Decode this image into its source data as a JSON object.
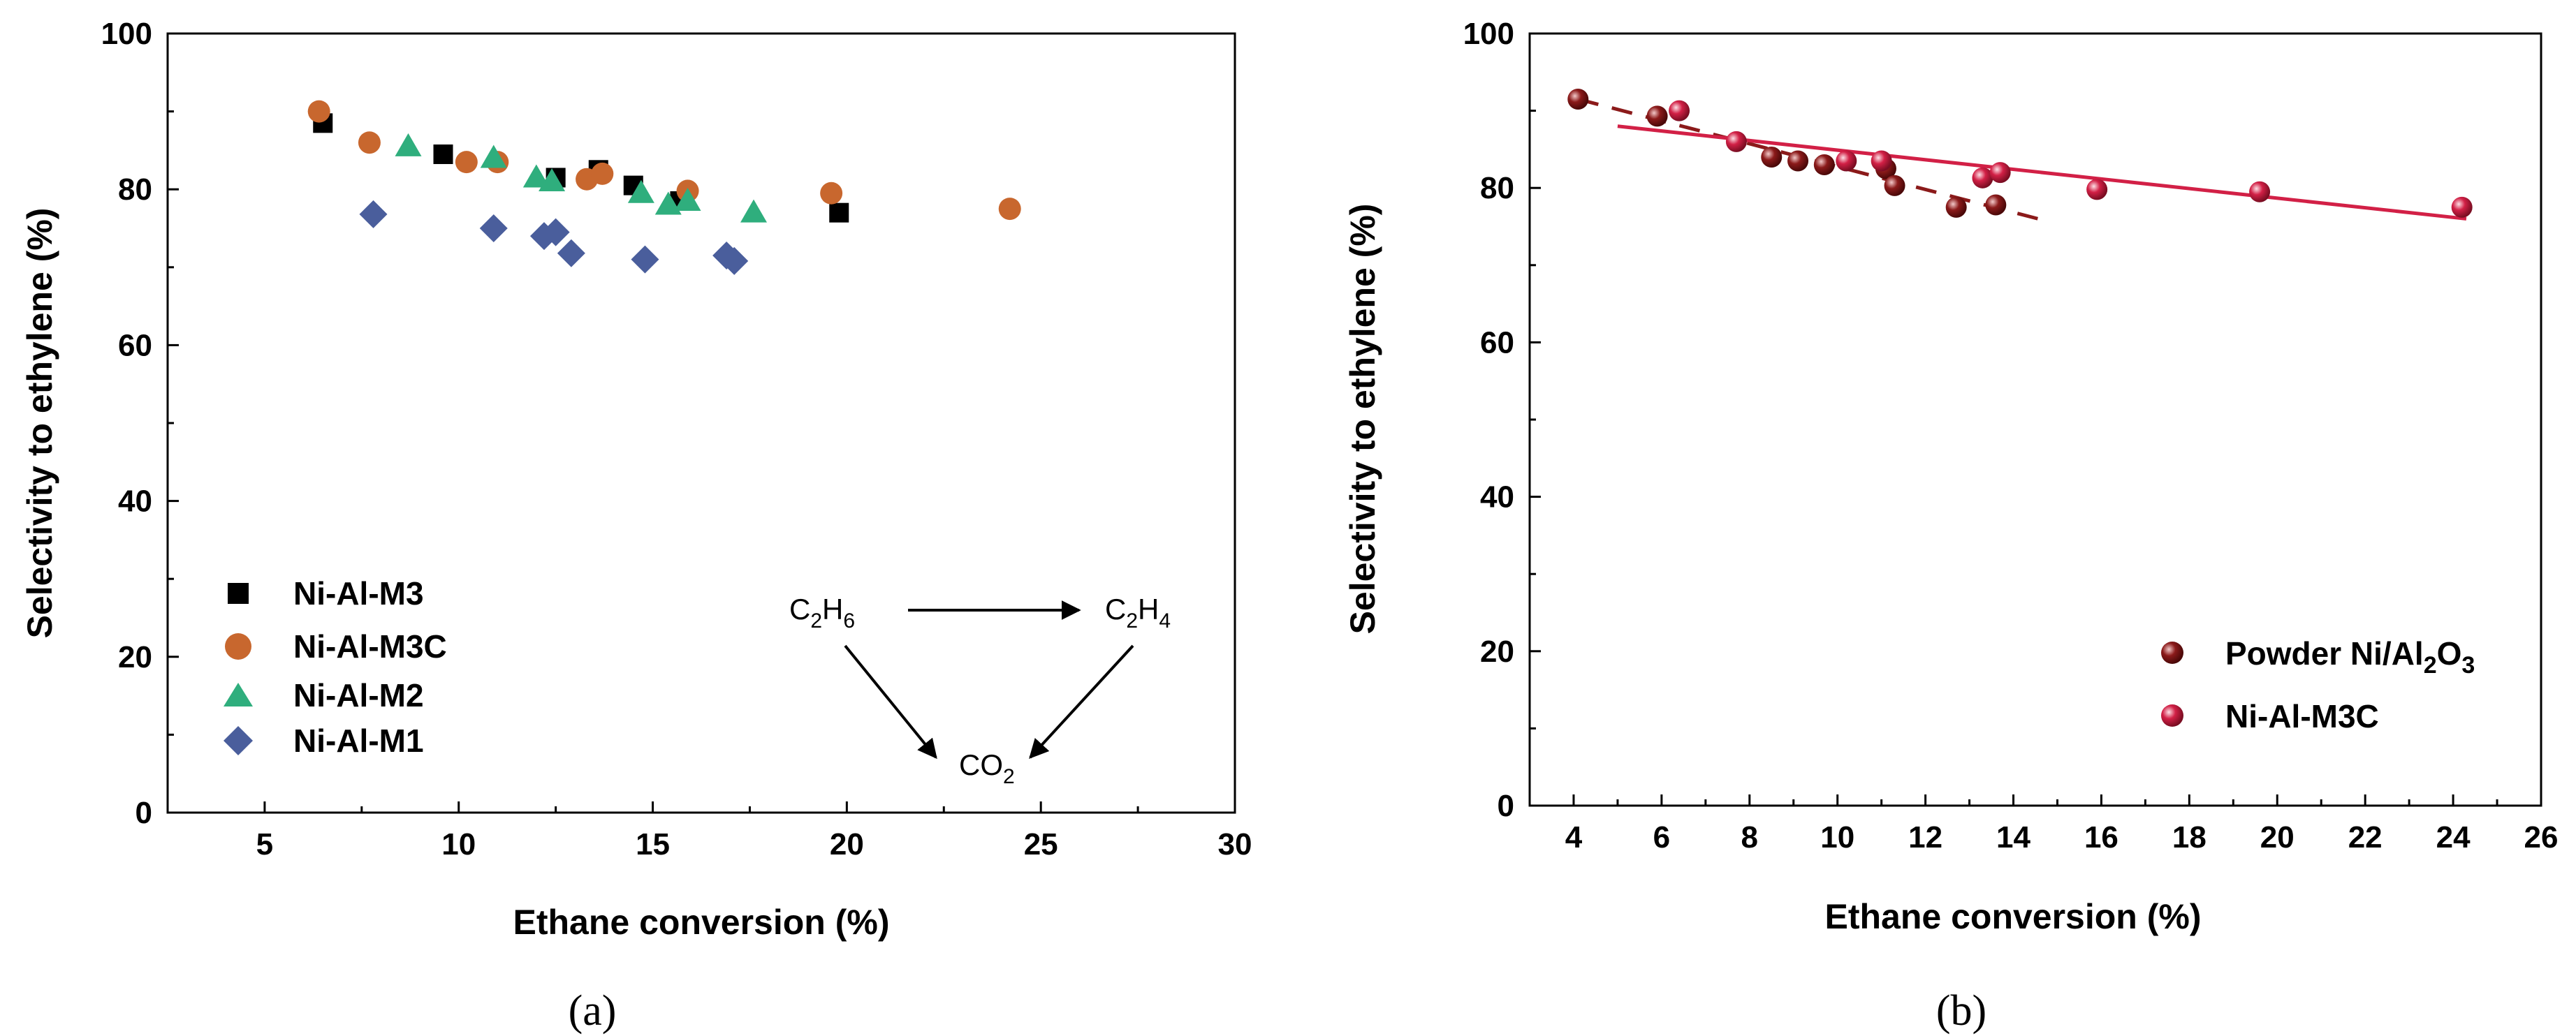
{
  "chart_data": [
    {
      "type": "scatter",
      "panel": "a",
      "caption": "(a)",
      "xlabel": "Ethane conversion (%)",
      "ylabel": "Selectivity to ethylene (%)",
      "xlim": [
        2.5,
        30
      ],
      "ylim": [
        0,
        100
      ],
      "xticks": [
        5,
        10,
        15,
        20,
        25,
        30
      ],
      "yticks": [
        0,
        20,
        40,
        60,
        80,
        100
      ],
      "grid": false,
      "legend_position": "bottom-left",
      "series": [
        {
          "name": "Ni-Al-M3",
          "marker": "square",
          "color": "#000000",
          "x": [
            6.5,
            9.6,
            12.5,
            13.6,
            14.5,
            15.7,
            19.8
          ],
          "y": [
            88.5,
            84.5,
            81.5,
            82.5,
            80.5,
            78.5,
            77.0
          ]
        },
        {
          "name": "Ni-Al-M3C",
          "marker": "circle",
          "color": "#c8672e",
          "x": [
            6.4,
            7.7,
            10.2,
            11.0,
            13.3,
            13.7,
            15.9,
            19.6,
            24.2
          ],
          "y": [
            90.0,
            86.0,
            83.5,
            83.5,
            81.3,
            82.0,
            79.8,
            79.5,
            77.5
          ]
        },
        {
          "name": "Ni-Al-M2",
          "marker": "triangle",
          "color": "#2fae7d",
          "x": [
            8.7,
            10.9,
            12.0,
            12.4,
            14.7,
            15.4,
            15.9,
            17.6
          ],
          "y": [
            85.5,
            84.0,
            81.5,
            81.0,
            79.5,
            78.0,
            78.5,
            77.0
          ]
        },
        {
          "name": "Ni-Al-M1",
          "marker": "diamond",
          "color": "#4a5e9c",
          "x": [
            7.8,
            10.9,
            12.2,
            12.5,
            12.9,
            14.8,
            16.9,
            17.1
          ],
          "y": [
            76.8,
            75.0,
            74.0,
            74.5,
            71.8,
            71.0,
            71.5,
            70.8
          ]
        }
      ],
      "scheme": {
        "reactant": {
          "base": "C",
          "n1": "2",
          "mid": "H",
          "n2": "6"
        },
        "product": {
          "base": "C",
          "n1": "2",
          "mid": "H",
          "n2": "4"
        },
        "byproduct": {
          "base": "CO",
          "n1": "2"
        }
      }
    },
    {
      "type": "scatter",
      "panel": "b",
      "caption": "(b)",
      "xlabel": "Ethane conversion (%)",
      "ylabel": "Selectivity to ethylene (%)",
      "xlim": [
        3,
        26
      ],
      "ylim": [
        0,
        100
      ],
      "xticks": [
        4,
        6,
        8,
        10,
        12,
        14,
        16,
        18,
        20,
        22,
        24,
        26
      ],
      "yticks": [
        0,
        20,
        40,
        60,
        80,
        100
      ],
      "grid": false,
      "legend_position": "bottom-right",
      "series": [
        {
          "name": "Powder Ni/Al2O3",
          "name_parts": {
            "pre": "Powder Ni/Al",
            "s1": "2",
            "mid": "O",
            "s2": "3"
          },
          "marker": "sphere",
          "color": "#8b1a1a",
          "x": [
            4.1,
            5.9,
            8.5,
            9.1,
            9.7,
            11.1,
            11.3,
            12.7,
            13.6
          ],
          "y": [
            91.5,
            89.3,
            84.0,
            83.5,
            83.0,
            82.5,
            80.3,
            77.5,
            77.8
          ],
          "fit": {
            "style": "dashed",
            "x": [
              4.1,
              14.7
            ],
            "y": [
              91.5,
              75.8
            ]
          }
        },
        {
          "name": "Ni-Al-M3C",
          "marker": "sphere",
          "color": "#d22046",
          "x": [
            6.4,
            7.7,
            10.2,
            11.0,
            13.3,
            13.7,
            15.9,
            19.6,
            24.2
          ],
          "y": [
            90.0,
            86.0,
            83.5,
            83.5,
            81.3,
            82.0,
            79.8,
            79.5,
            77.5
          ],
          "fit": {
            "style": "solid",
            "x": [
              5.0,
              24.3
            ],
            "y": [
              88.0,
              76.0
            ]
          }
        }
      ]
    }
  ]
}
